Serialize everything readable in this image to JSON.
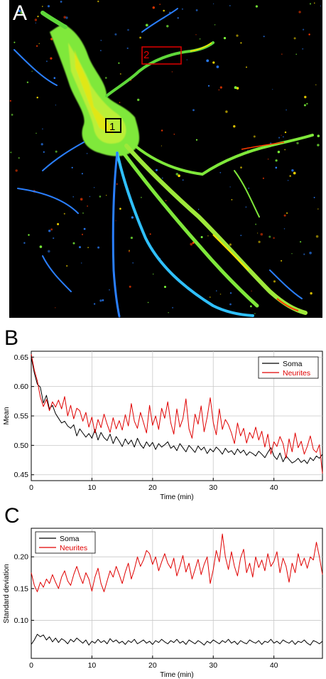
{
  "panels": {
    "a": {
      "letter": "A",
      "roi_labels": [
        "1",
        "2"
      ],
      "colors": {
        "background": "#000000",
        "roi1": "#000000",
        "roi2": "#e00000",
        "cell_low": "#2a7fff",
        "cell_mid": "#7fff3a",
        "cell_high": "#ffe000",
        "cell_peak": "#ff3b00"
      }
    },
    "b": {
      "letter": "B"
    },
    "c": {
      "letter": "C"
    }
  },
  "chart_data": [
    {
      "type": "line",
      "panel": "B",
      "title": "",
      "xlabel": "Time (min)",
      "ylabel": "Mean",
      "xlim": [
        0,
        48
      ],
      "ylim": [
        0.44,
        0.66
      ],
      "xticks": [
        0,
        10,
        20,
        30,
        40
      ],
      "yticks": [
        0.45,
        0.5,
        0.55,
        0.6,
        0.65
      ],
      "ytick_labels": [
        "0.45",
        "0.50",
        "0.55",
        "0.60",
        "0.65"
      ],
      "grid": true,
      "legend": "top-right",
      "series": [
        {
          "name": "Soma",
          "color": "#000000",
          "x": [
            0,
            0.5,
            1,
            1.5,
            2,
            2.5,
            3,
            3.5,
            4,
            4.5,
            5,
            5.5,
            6,
            6.5,
            7,
            7.5,
            8,
            8.5,
            9,
            9.5,
            10,
            10.5,
            11,
            11.5,
            12,
            12.5,
            13,
            13.5,
            14,
            14.5,
            15,
            15.5,
            16,
            16.5,
            17,
            17.5,
            18,
            18.5,
            19,
            19.5,
            20,
            20.5,
            21,
            21.5,
            22,
            22.5,
            23,
            23.5,
            24,
            24.5,
            25,
            25.5,
            26,
            26.5,
            27,
            27.5,
            28,
            28.5,
            29,
            29.5,
            30,
            30.5,
            31,
            31.5,
            32,
            32.5,
            33,
            33.5,
            34,
            34.5,
            35,
            35.5,
            36,
            36.5,
            37,
            37.5,
            38,
            38.5,
            39,
            39.5,
            40,
            40.5,
            41,
            41.5,
            42,
            42.5,
            43,
            43.5,
            44,
            44.5,
            45,
            45.5,
            46,
            46.5,
            47,
            47.5,
            48
          ],
          "values": [
            0.65,
            0.623,
            0.604,
            0.599,
            0.572,
            0.585,
            0.562,
            0.568,
            0.554,
            0.546,
            0.538,
            0.541,
            0.533,
            0.529,
            0.535,
            0.516,
            0.528,
            0.521,
            0.514,
            0.52,
            0.512,
            0.527,
            0.509,
            0.522,
            0.513,
            0.508,
            0.519,
            0.503,
            0.515,
            0.507,
            0.498,
            0.511,
            0.502,
            0.509,
            0.497,
            0.512,
            0.501,
            0.495,
            0.506,
            0.498,
            0.505,
            0.493,
            0.503,
            0.497,
            0.501,
            0.506,
            0.495,
            0.499,
            0.491,
            0.503,
            0.496,
            0.489,
            0.5,
            0.494,
            0.488,
            0.499,
            0.492,
            0.497,
            0.486,
            0.494,
            0.489,
            0.497,
            0.492,
            0.485,
            0.495,
            0.488,
            0.491,
            0.484,
            0.494,
            0.487,
            0.492,
            0.483,
            0.489,
            0.486,
            0.482,
            0.49,
            0.485,
            0.479,
            0.488,
            0.496,
            0.482,
            0.476,
            0.487,
            0.472,
            0.482,
            0.476,
            0.47,
            0.473,
            0.478,
            0.471,
            0.475,
            0.469,
            0.479,
            0.474,
            0.482,
            0.478,
            0.485
          ]
        },
        {
          "name": "Neurites",
          "color": "#e00000",
          "x": [
            0,
            0.5,
            1,
            1.5,
            2,
            2.5,
            3,
            3.5,
            4,
            4.5,
            5,
            5.5,
            6,
            6.5,
            7,
            7.5,
            8,
            8.5,
            9,
            9.5,
            10,
            10.5,
            11,
            11.5,
            12,
            12.5,
            13,
            13.5,
            14,
            14.5,
            15,
            15.5,
            16,
            16.5,
            17,
            17.5,
            18,
            18.5,
            19,
            19.5,
            20,
            20.5,
            21,
            21.5,
            22,
            22.5,
            23,
            23.5,
            24,
            24.5,
            25,
            25.5,
            26,
            26.5,
            27,
            27.5,
            28,
            28.5,
            29,
            29.5,
            30,
            30.5,
            31,
            31.5,
            32,
            32.5,
            33,
            33.5,
            34,
            34.5,
            35,
            35.5,
            36,
            36.5,
            37,
            37.5,
            38,
            38.5,
            39,
            39.5,
            40,
            40.5,
            41,
            41.5,
            42,
            42.5,
            43,
            43.5,
            44,
            44.5,
            45,
            45.5,
            46,
            46.5,
            47,
            47.5,
            48
          ],
          "values": [
            0.655,
            0.628,
            0.61,
            0.582,
            0.566,
            0.578,
            0.559,
            0.574,
            0.565,
            0.577,
            0.562,
            0.583,
            0.55,
            0.568,
            0.545,
            0.563,
            0.559,
            0.541,
            0.556,
            0.531,
            0.548,
            0.521,
            0.544,
            0.53,
            0.553,
            0.536,
            0.522,
            0.547,
            0.528,
            0.542,
            0.526,
            0.552,
            0.533,
            0.571,
            0.541,
            0.529,
            0.556,
            0.539,
            0.521,
            0.568,
            0.534,
            0.55,
            0.527,
            0.563,
            0.546,
            0.574,
            0.538,
            0.519,
            0.562,
            0.531,
            0.545,
            0.579,
            0.528,
            0.512,
            0.553,
            0.536,
            0.567,
            0.523,
            0.548,
            0.581,
            0.539,
            0.518,
            0.562,
            0.527,
            0.544,
            0.535,
            0.521,
            0.503,
            0.538,
            0.516,
            0.529,
            0.504,
            0.522,
            0.512,
            0.531,
            0.509,
            0.524,
            0.497,
            0.519,
            0.485,
            0.506,
            0.498,
            0.515,
            0.503,
            0.478,
            0.511,
            0.489,
            0.521,
            0.496,
            0.507,
            0.485,
            0.498,
            0.516,
            0.493,
            0.488,
            0.501,
            0.452
          ]
        }
      ]
    },
    {
      "type": "line",
      "panel": "C",
      "title": "",
      "xlabel": "Time (min)",
      "ylabel": "Standard deviation",
      "xlim": [
        0,
        48
      ],
      "ylim": [
        0.04,
        0.245
      ],
      "xticks": [
        0,
        10,
        20,
        30,
        40
      ],
      "yticks": [
        0.1,
        0.15,
        0.2
      ],
      "ytick_labels": [
        "0.10",
        "0.15",
        "0.20"
      ],
      "grid": true,
      "legend": "top-left",
      "series": [
        {
          "name": "Soma",
          "color": "#000000",
          "x": [
            0,
            0.5,
            1,
            1.5,
            2,
            2.5,
            3,
            3.5,
            4,
            4.5,
            5,
            5.5,
            6,
            6.5,
            7,
            7.5,
            8,
            8.5,
            9,
            9.5,
            10,
            10.5,
            11,
            11.5,
            12,
            12.5,
            13,
            13.5,
            14,
            14.5,
            15,
            15.5,
            16,
            16.5,
            17,
            17.5,
            18,
            18.5,
            19,
            19.5,
            20,
            20.5,
            21,
            21.5,
            22,
            22.5,
            23,
            23.5,
            24,
            24.5,
            25,
            25.5,
            26,
            26.5,
            27,
            27.5,
            28,
            28.5,
            29,
            29.5,
            30,
            30.5,
            31,
            31.5,
            32,
            32.5,
            33,
            33.5,
            34,
            34.5,
            35,
            35.5,
            36,
            36.5,
            37,
            37.5,
            38,
            38.5,
            39,
            39.5,
            40,
            40.5,
            41,
            41.5,
            42,
            42.5,
            43,
            43.5,
            44,
            44.5,
            45,
            45.5,
            46,
            46.5,
            47,
            47.5,
            48
          ],
          "values": [
            0.062,
            0.069,
            0.078,
            0.074,
            0.077,
            0.069,
            0.074,
            0.066,
            0.072,
            0.065,
            0.071,
            0.068,
            0.063,
            0.07,
            0.066,
            0.072,
            0.068,
            0.064,
            0.069,
            0.061,
            0.067,
            0.064,
            0.07,
            0.065,
            0.068,
            0.063,
            0.071,
            0.066,
            0.069,
            0.064,
            0.067,
            0.062,
            0.068,
            0.065,
            0.07,
            0.063,
            0.066,
            0.069,
            0.064,
            0.067,
            0.062,
            0.068,
            0.065,
            0.07,
            0.066,
            0.063,
            0.068,
            0.065,
            0.07,
            0.064,
            0.067,
            0.062,
            0.069,
            0.066,
            0.063,
            0.068,
            0.065,
            0.061,
            0.067,
            0.064,
            0.069,
            0.066,
            0.063,
            0.068,
            0.065,
            0.07,
            0.064,
            0.067,
            0.062,
            0.068,
            0.065,
            0.063,
            0.069,
            0.066,
            0.064,
            0.068,
            0.062,
            0.067,
            0.065,
            0.07,
            0.064,
            0.067,
            0.063,
            0.069,
            0.066,
            0.064,
            0.068,
            0.062,
            0.067,
            0.065,
            0.069,
            0.064,
            0.061,
            0.068,
            0.066,
            0.063,
            0.067
          ]
        },
        {
          "name": "Neurites",
          "color": "#e00000",
          "x": [
            0,
            0.5,
            1,
            1.5,
            2,
            2.5,
            3,
            3.5,
            4,
            4.5,
            5,
            5.5,
            6,
            6.5,
            7,
            7.5,
            8,
            8.5,
            9,
            9.5,
            10,
            10.5,
            11,
            11.5,
            12,
            12.5,
            13,
            13.5,
            14,
            14.5,
            15,
            15.5,
            16,
            16.5,
            17,
            17.5,
            18,
            18.5,
            19,
            19.5,
            20,
            20.5,
            21,
            21.5,
            22,
            22.5,
            23,
            23.5,
            24,
            24.5,
            25,
            25.5,
            26,
            26.5,
            27,
            27.5,
            28,
            28.5,
            29,
            29.5,
            30,
            30.5,
            31,
            31.5,
            32,
            32.5,
            33,
            33.5,
            34,
            34.5,
            35,
            35.5,
            36,
            36.5,
            37,
            37.5,
            38,
            38.5,
            39,
            39.5,
            40,
            40.5,
            41,
            41.5,
            42,
            42.5,
            43,
            43.5,
            44,
            44.5,
            45,
            45.5,
            46,
            46.5,
            47,
            47.5,
            48
          ],
          "values": [
            0.175,
            0.155,
            0.145,
            0.16,
            0.152,
            0.165,
            0.158,
            0.172,
            0.16,
            0.15,
            0.168,
            0.178,
            0.162,
            0.155,
            0.172,
            0.185,
            0.17,
            0.158,
            0.175,
            0.165,
            0.146,
            0.168,
            0.182,
            0.158,
            0.145,
            0.162,
            0.178,
            0.168,
            0.185,
            0.172,
            0.158,
            0.176,
            0.19,
            0.165,
            0.18,
            0.2,
            0.185,
            0.195,
            0.21,
            0.205,
            0.188,
            0.2,
            0.178,
            0.192,
            0.205,
            0.19,
            0.182,
            0.198,
            0.17,
            0.185,
            0.202,
            0.176,
            0.19,
            0.165,
            0.18,
            0.196,
            0.172,
            0.188,
            0.2,
            0.158,
            0.18,
            0.21,
            0.192,
            0.236,
            0.2,
            0.18,
            0.208,
            0.185,
            0.17,
            0.198,
            0.212,
            0.175,
            0.19,
            0.168,
            0.2,
            0.183,
            0.195,
            0.178,
            0.205,
            0.185,
            0.193,
            0.208,
            0.175,
            0.198,
            0.185,
            0.16,
            0.19,
            0.175,
            0.205,
            0.186,
            0.198,
            0.182,
            0.2,
            0.195,
            0.223,
            0.2,
            0.172
          ]
        }
      ]
    }
  ]
}
